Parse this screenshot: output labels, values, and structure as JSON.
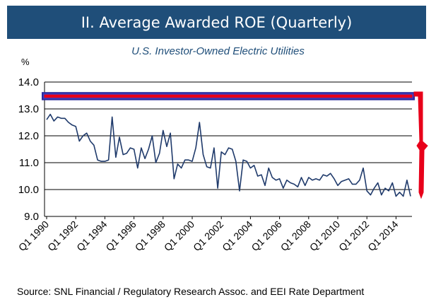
{
  "header": {
    "title": "II. Average Awarded ROE (Quarterly)"
  },
  "chart_subtitle": "U.S. Investor-Owned Electric Utilities",
  "source": "Source: SNL Financial / Regulatory Research Assoc. and EEI Rate Department",
  "colors": {
    "title_bg": "#1f4e79",
    "line": "#1f3a6b",
    "grid": "#000000",
    "annotation_rect": "#4040c0",
    "annotation_red": "#e8001a"
  },
  "chart_data": {
    "type": "line",
    "title": "II. Average Awarded ROE (Quarterly)",
    "subtitle": "U.S. Investor-Owned Electric Utilities",
    "ylabel": "%",
    "xlabel": "",
    "ylim": [
      9.0,
      14.0
    ],
    "yticks": [
      "9.0",
      "10.0",
      "11.0",
      "12.0",
      "13.0",
      "14.0"
    ],
    "xticks": [
      "Q1 1990",
      "Q1 1992",
      "Q1 1994",
      "Q1 1996",
      "Q1 1998",
      "Q1 2000",
      "Q1 2002",
      "Q1 2004",
      "Q1 2006",
      "Q1 2008",
      "Q1 2010",
      "Q1 2012",
      "Q1 2014"
    ],
    "grid": "horizontal",
    "legend": "none",
    "series": [
      {
        "x_start": "Q1 1990",
        "frequency": "quarterly",
        "values": [
          12.6,
          12.8,
          12.55,
          12.7,
          12.65,
          12.65,
          12.5,
          12.4,
          12.35,
          11.8,
          12.0,
          12.1,
          11.8,
          11.65,
          11.1,
          11.05,
          11.05,
          11.1,
          12.7,
          11.2,
          11.95,
          11.3,
          11.35,
          11.55,
          11.5,
          10.8,
          11.55,
          11.15,
          11.5,
          12.0,
          11.0,
          11.35,
          12.2,
          11.6,
          12.1,
          10.4,
          10.95,
          10.8,
          11.1,
          11.1,
          11.05,
          11.55,
          12.5,
          11.3,
          10.85,
          10.8,
          11.55,
          10.05,
          11.4,
          11.3,
          11.55,
          11.5,
          11.05,
          9.95,
          11.1,
          11.05,
          10.8,
          10.9,
          10.5,
          10.55,
          10.15,
          10.8,
          10.45,
          10.35,
          10.4,
          10.05,
          10.35,
          10.25,
          10.2,
          10.1,
          10.45,
          10.15,
          10.45,
          10.35,
          10.4,
          10.35,
          10.55,
          10.5,
          10.6,
          10.4,
          10.15,
          10.3,
          10.35,
          10.4,
          10.2,
          10.2,
          10.35,
          10.8,
          9.95,
          9.8,
          10.05,
          10.25,
          9.8,
          10.05,
          9.95,
          10.25,
          9.75,
          9.9,
          9.75,
          10.35,
          9.75
        ]
      }
    ],
    "annotations": [
      {
        "type": "highlight-bar",
        "y_from": 13.35,
        "y_to": 13.6
      },
      {
        "type": "red-arrow-down"
      }
    ]
  }
}
